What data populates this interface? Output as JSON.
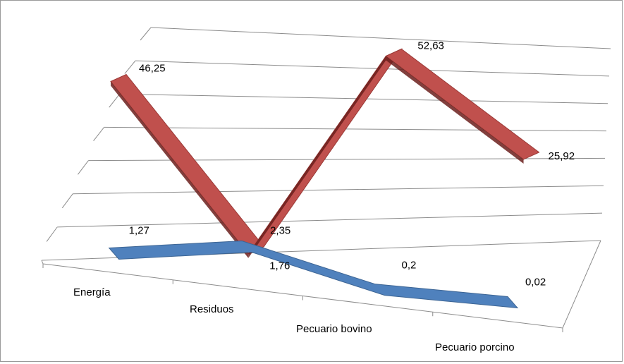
{
  "chart_data": {
    "type": "line",
    "style": "3d",
    "categories": [
      "Energía",
      "Residuos",
      "Pecuario bovino",
      "Pecuario porcino"
    ],
    "series": [
      {
        "values": [
          46.25,
          1.76,
          52.63,
          25.92
        ],
        "color": "#c0504d"
      },
      {
        "values": [
          1.27,
          2.35,
          0.2,
          0.02
        ],
        "color": "#4f81bd"
      }
    ],
    "data_labels": [
      [
        "46,25",
        "1,76",
        "52,63",
        "25,92"
      ],
      [
        "1,27",
        "2,35",
        "0,2",
        "0,02"
      ]
    ],
    "ylim": [
      0,
      60
    ],
    "grid": true,
    "legend": "none"
  }
}
